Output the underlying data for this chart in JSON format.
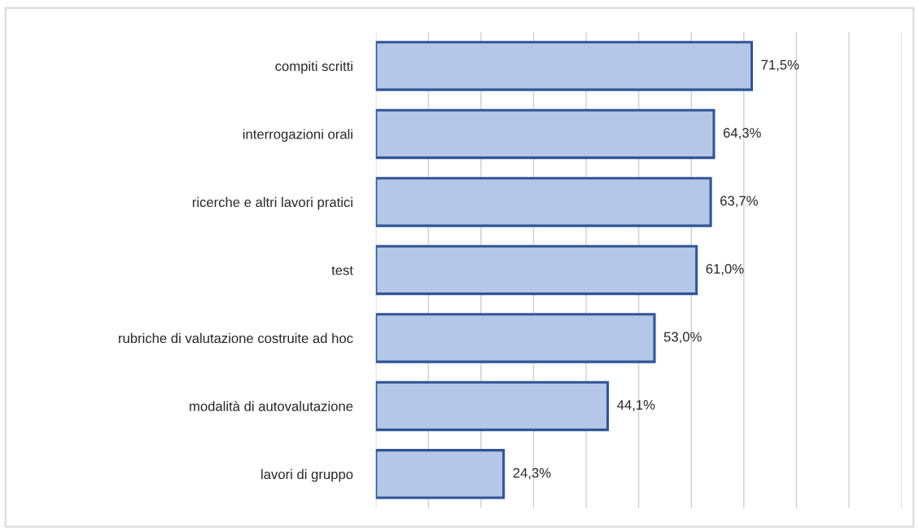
{
  "chart_data": {
    "type": "bar",
    "orientation": "horizontal",
    "categories": [
      "compiti scritti",
      "interrogazioni orali",
      "ricerche e altri lavori pratici",
      "test",
      "rubriche di valutazione costruite ad hoc",
      "modalità di autovalutazione",
      "lavori di gruppo"
    ],
    "values": [
      71.5,
      64.3,
      63.7,
      61.0,
      53.0,
      44.1,
      24.3
    ],
    "value_labels": [
      "71,5%",
      "64,3%",
      "63,7%",
      "61,0%",
      "53,0%",
      "44,1%",
      "24,3%"
    ],
    "color": "#b4c7e7",
    "xlim": [
      0,
      100
    ],
    "xticks": [
      {
        "value": 0,
        "label": null
      },
      {
        "value": 10,
        "label": null
      },
      {
        "value": 20,
        "label": null
      },
      {
        "value": 30,
        "label": null
      },
      {
        "value": 40,
        "label": null
      },
      {
        "value": 50,
        "label": null
      },
      {
        "value": 60,
        "label": null
      },
      {
        "value": 70,
        "label": null
      },
      {
        "value": 80,
        "label": null
      },
      {
        "value": 90,
        "label": null
      },
      {
        "value": 100,
        "label": null
      }
    ],
    "grid": "x",
    "tick_labels": "y",
    "legend": false
  }
}
